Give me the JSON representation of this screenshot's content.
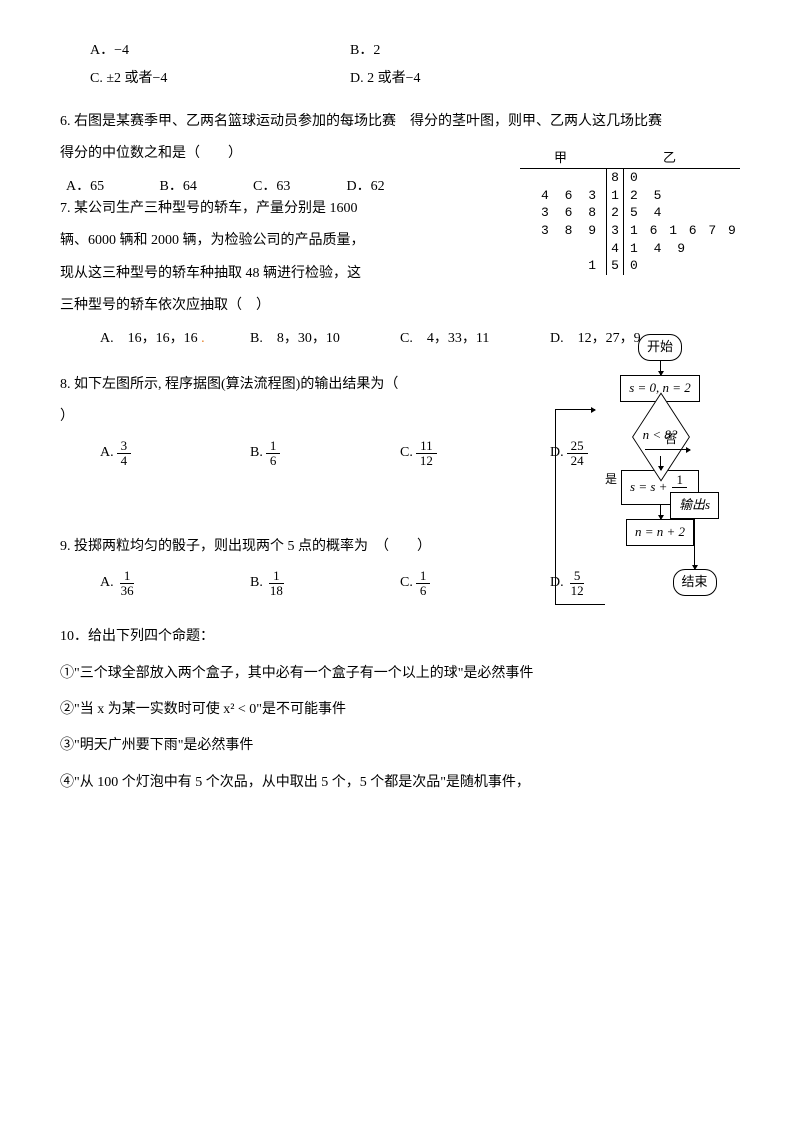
{
  "q5_options": {
    "a": "A．−4",
    "b": "B．2",
    "c": "C. ±2 或者−4",
    "d": "D. 2 或者−4"
  },
  "q6": {
    "stem1": "6. 右图是某赛季甲、乙两名篮球运动员参加的每场比赛　得分的茎叶图，则甲、乙两人这几场比赛",
    "stem2": "得分的中位数之和是（　　）",
    "opts": {
      "a": "A．65",
      "b": "B．64",
      "c": "C．63",
      "d": "D．62"
    },
    "sl_header": {
      "left": "甲",
      "right": "乙"
    },
    "sl_rows": [
      {
        "left": "",
        "stem": "8",
        "right": "0"
      },
      {
        "left": "4 6 3",
        "stem": "1",
        "right": "2 5"
      },
      {
        "left": "3 6 8",
        "stem": "2",
        "right": "5 4"
      },
      {
        "left": "3 8 9",
        "stem": "3",
        "right": "1 6 1 6 7 9",
        "tight": true
      },
      {
        "left": "",
        "stem": "4",
        "right": "1 4 9"
      },
      {
        "left": "1",
        "stem": "5",
        "right": "0"
      }
    ]
  },
  "q7": {
    "line1": "7. 某公司生产三种型号的轿车，产量分别是 1600",
    "line2": "辆、6000 辆和 2000 辆，为检验公司的产品质量，",
    "line3": "现从这三种型号的轿车种抽取 48 辆进行检验，这",
    "line4": "三种型号的轿车依次应抽取（　）",
    "opts": {
      "a": "A.　16，16，16",
      "b": "B.　8，30，10",
      "c": "C.　4，33，11",
      "d": "D.　12，27，9"
    }
  },
  "q8": {
    "stem": "8. 如下左图所示, 程序据图(算法流程图)的输出结果为（",
    "stem2": "）",
    "opts_label": {
      "a": "A.",
      "b": "B.",
      "c": "C.",
      "d": "D."
    },
    "fracs": {
      "a_num": "3",
      "a_den": "4",
      "b_num": "1",
      "b_den": "6",
      "c_num": "11",
      "c_den": "12",
      "d_num": "25",
      "d_den": "24"
    },
    "flow": {
      "start": "开始",
      "init": "s = 0, n = 2",
      "cond": "n < 8?",
      "yes": "是",
      "no": "否",
      "sum_pre": "s = s + ",
      "sum_frac_num": "1",
      "sum_frac_den": "n",
      "inc": "n = n + 2",
      "out": "输出s",
      "end": "结束"
    }
  },
  "q9": {
    "stem": "9. 投掷两粒均匀的骰子，则出现两个 5 点的概率为　（　　）",
    "opts_label": {
      "a": "A.",
      "b": "B.",
      "c": "C.",
      "d": "D."
    },
    "fracs": {
      "a_num": "1",
      "a_den": "36",
      "b_num": "1",
      "b_den": "18",
      "c_num": "1",
      "c_den": "6",
      "d_num": "5",
      "d_den": "12"
    }
  },
  "q10": {
    "stem": "10．给出下列四个命题：",
    "p1": "①\"三个球全部放入两个盒子，其中必有一个盒子有一个以上的球\"是必然事件",
    "p2": "②\"当 x 为某一实数时可使 x² < 0\"是不可能事件",
    "p3": "③\"明天广州要下雨\"是必然事件",
    "p4": "④\"从 100 个灯泡中有 5 个次品，从中取出 5 个，5 个都是次品\"是随机事件，"
  }
}
